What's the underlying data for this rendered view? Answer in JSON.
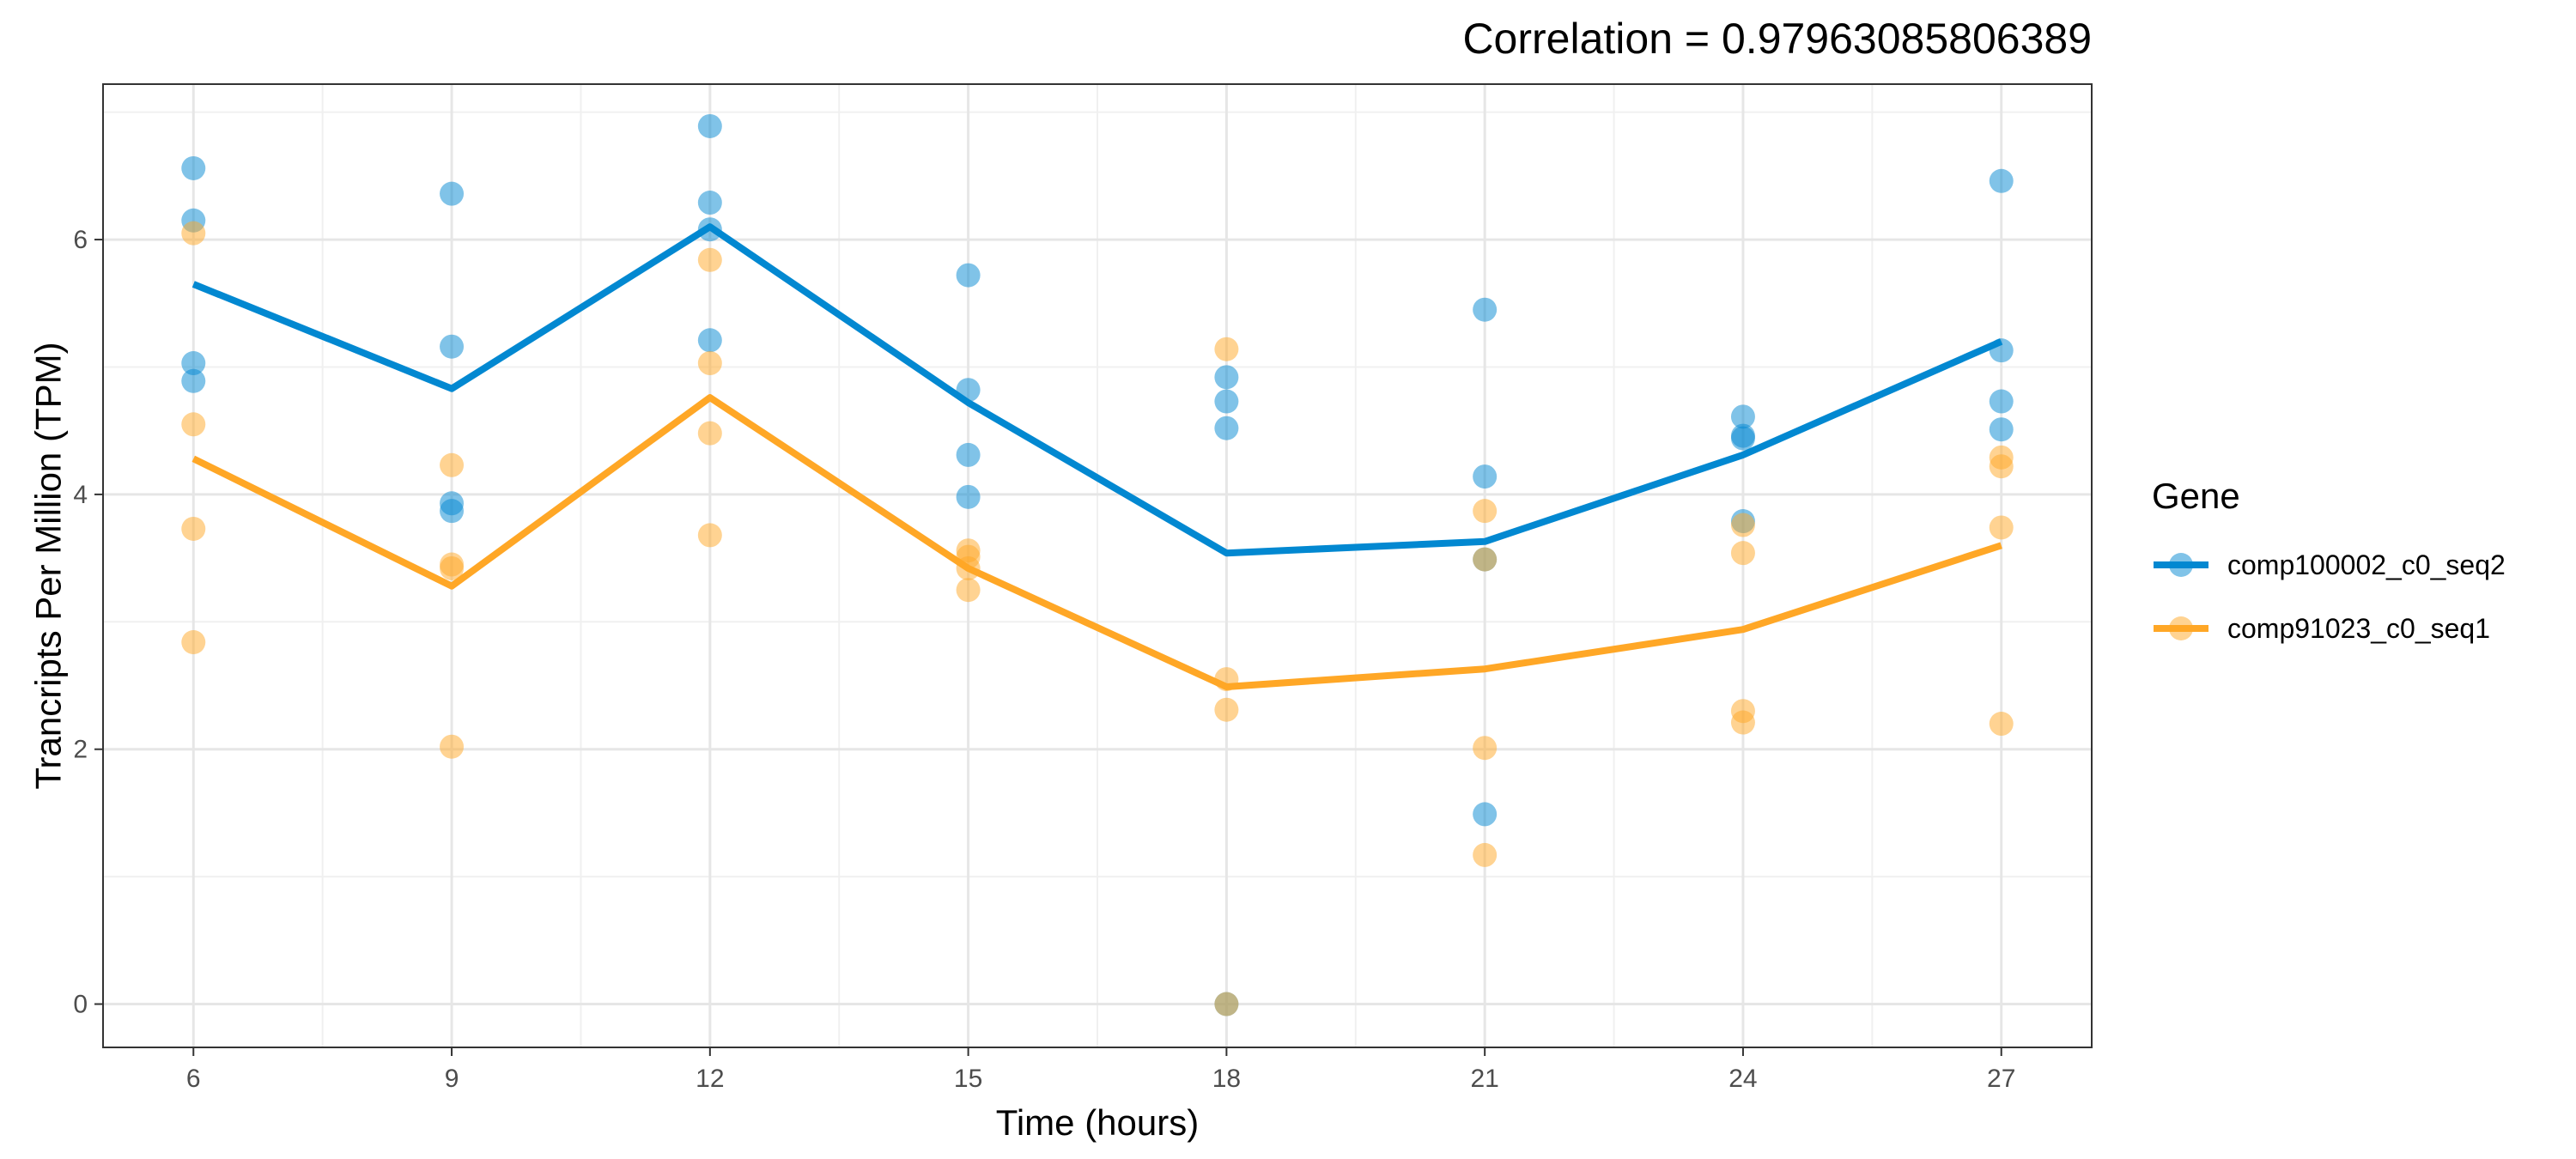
{
  "chart_data": {
    "type": "line",
    "title": "Correlation =  0.97963085806389",
    "xlabel": "Time (hours)",
    "ylabel": "Trancripts Per Million (TPM)",
    "x_ticks": [
      6,
      9,
      12,
      15,
      18,
      21,
      24,
      27
    ],
    "y_ticks": [
      0,
      2,
      4,
      6
    ],
    "xlim": [
      4.95,
      28.05
    ],
    "ylim": [
      -0.34,
      7.22
    ],
    "grid": true,
    "legend": {
      "title": "Gene",
      "position": "right"
    },
    "series": [
      {
        "name": "comp100002_c0_seq2",
        "color": "#0288D1",
        "line": [
          [
            6,
            5.65
          ],
          [
            9,
            4.83
          ],
          [
            12,
            6.1
          ],
          [
            15,
            4.72
          ],
          [
            18,
            3.54
          ],
          [
            21,
            3.63
          ],
          [
            24,
            4.31
          ],
          [
            27,
            5.2
          ]
        ],
        "points": [
          [
            6,
            6.56
          ],
          [
            6,
            6.15
          ],
          [
            6,
            5.03
          ],
          [
            6,
            4.89
          ],
          [
            9,
            6.36
          ],
          [
            9,
            5.16
          ],
          [
            9,
            3.93
          ],
          [
            9,
            3.87
          ],
          [
            12,
            6.89
          ],
          [
            12,
            6.29
          ],
          [
            12,
            6.08
          ],
          [
            12,
            5.21
          ],
          [
            15,
            5.72
          ],
          [
            15,
            4.82
          ],
          [
            15,
            4.31
          ],
          [
            15,
            3.98
          ],
          [
            18,
            4.92
          ],
          [
            18,
            4.73
          ],
          [
            18,
            4.52
          ],
          [
            18,
            0.0
          ],
          [
            21,
            5.45
          ],
          [
            21,
            4.14
          ],
          [
            21,
            3.49
          ],
          [
            21,
            1.49
          ],
          [
            24,
            4.61
          ],
          [
            24,
            4.46
          ],
          [
            24,
            4.44
          ],
          [
            24,
            3.79
          ],
          [
            27,
            6.46
          ],
          [
            27,
            5.13
          ],
          [
            27,
            4.73
          ],
          [
            27,
            4.51
          ]
        ]
      },
      {
        "name": "comp91023_c0_seq1",
        "color": "#FFA726",
        "line": [
          [
            6,
            4.28
          ],
          [
            9,
            3.28
          ],
          [
            12,
            4.76
          ],
          [
            15,
            3.42
          ],
          [
            18,
            2.49
          ],
          [
            21,
            2.63
          ],
          [
            24,
            2.94
          ],
          [
            27,
            3.6
          ]
        ],
        "points": [
          [
            6,
            6.05
          ],
          [
            6,
            4.55
          ],
          [
            6,
            3.73
          ],
          [
            6,
            2.84
          ],
          [
            9,
            4.23
          ],
          [
            9,
            3.45
          ],
          [
            9,
            3.42
          ],
          [
            9,
            2.02
          ],
          [
            12,
            5.84
          ],
          [
            12,
            5.03
          ],
          [
            12,
            4.48
          ],
          [
            12,
            3.68
          ],
          [
            15,
            3.56
          ],
          [
            15,
            3.51
          ],
          [
            15,
            3.42
          ],
          [
            15,
            3.25
          ],
          [
            18,
            5.14
          ],
          [
            18,
            2.55
          ],
          [
            18,
            2.31
          ],
          [
            18,
            0.0
          ],
          [
            21,
            3.87
          ],
          [
            21,
            3.49
          ],
          [
            21,
            2.01
          ],
          [
            21,
            1.17
          ],
          [
            24,
            3.76
          ],
          [
            24,
            3.54
          ],
          [
            24,
            2.3
          ],
          [
            24,
            2.21
          ],
          [
            27,
            4.29
          ],
          [
            27,
            4.22
          ],
          [
            27,
            3.74
          ],
          [
            27,
            2.2
          ]
        ]
      }
    ]
  }
}
